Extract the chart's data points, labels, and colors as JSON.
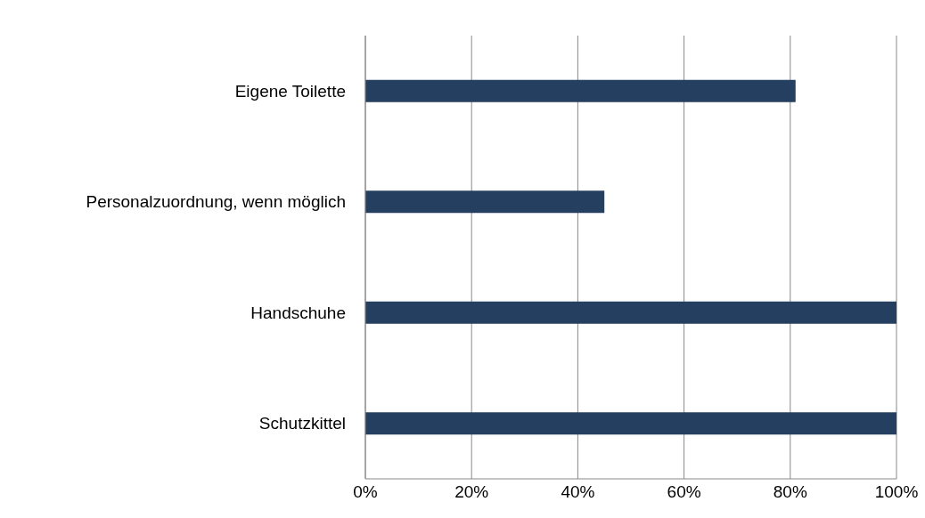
{
  "chart_data": {
    "type": "bar",
    "orientation": "horizontal",
    "categories": [
      "Eigene Toilette",
      "Personalzuordnung, wenn möglich",
      "Handschuhe",
      "Schutzkittel"
    ],
    "values": [
      81,
      45,
      100,
      100
    ],
    "color": "#243f60",
    "xlim": [
      0,
      100
    ],
    "xticks": [
      {
        "value": 0,
        "label": "0%"
      },
      {
        "value": 20,
        "label": "20%"
      },
      {
        "value": 40,
        "label": "40%"
      },
      {
        "value": 60,
        "label": "60%"
      },
      {
        "value": 80,
        "label": "80%"
      },
      {
        "value": 100,
        "label": "100%"
      }
    ],
    "grid": "x"
  }
}
